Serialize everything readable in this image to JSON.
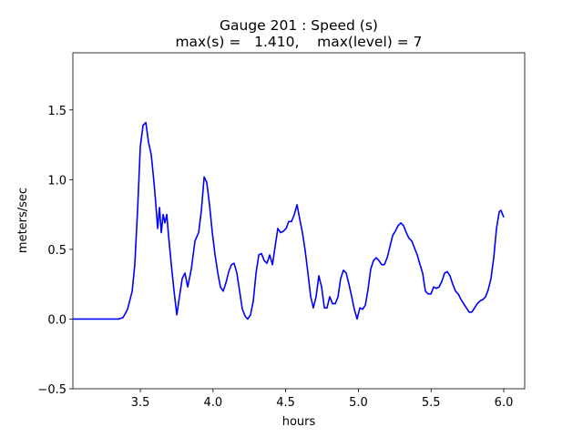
{
  "chart_data": {
    "type": "line",
    "title": "Gauge 201 : Speed (s)",
    "subtitle": "max(s) =   1.410,    max(level) = 7",
    "x_label": "hours",
    "y_label": "meters/sec",
    "xlim": [
      3.036,
      6.144
    ],
    "ylim": [
      -0.5,
      1.91
    ],
    "xticks": [
      3.5,
      {
        "value": 4,
        "label": "4.0"
      },
      4.5,
      {
        "value": 5,
        "label": "5.0"
      },
      5.5,
      {
        "value": 6,
        "label": "6.0"
      }
    ],
    "yticks": [
      {
        "value": -0.5,
        "label": "−0.5"
      },
      {
        "value": 0,
        "label": "0.0"
      },
      0.5,
      {
        "value": 1,
        "label": "1.0"
      },
      1.5
    ],
    "grid": false,
    "series": [
      {
        "color": "#0000ff",
        "x": [
          3.036,
          3.162,
          3.35,
          3.381,
          3.412,
          3.444,
          3.462,
          3.481,
          3.5,
          3.519,
          3.538,
          3.556,
          3.575,
          3.594,
          3.607,
          3.619,
          3.632,
          3.644,
          3.657,
          3.669,
          3.682,
          3.694,
          3.713,
          3.732,
          3.751,
          3.769,
          3.788,
          3.807,
          3.826,
          3.851,
          3.876,
          3.901,
          3.92,
          3.939,
          3.957,
          3.976,
          3.995,
          4.014,
          4.033,
          4.051,
          4.07,
          4.089,
          4.108,
          4.127,
          4.145,
          4.164,
          4.183,
          4.202,
          4.221,
          4.239,
          4.258,
          4.277,
          4.296,
          4.315,
          4.333,
          4.352,
          4.371,
          4.39,
          4.409,
          4.427,
          4.446,
          4.465,
          4.484,
          4.503,
          4.521,
          4.54,
          4.559,
          4.578,
          4.596,
          4.615,
          4.634,
          4.653,
          4.672,
          4.69,
          4.709,
          4.728,
          4.747,
          4.766,
          4.784,
          4.803,
          4.822,
          4.841,
          4.86,
          4.878,
          4.897,
          4.916,
          4.935,
          4.954,
          4.972,
          4.991,
          5.01,
          5.029,
          5.048,
          5.066,
          5.085,
          5.104,
          5.123,
          5.141,
          5.16,
          5.179,
          5.198,
          5.217,
          5.236,
          5.254,
          5.273,
          5.292,
          5.311,
          5.329,
          5.348,
          5.367,
          5.386,
          5.405,
          5.424,
          5.442,
          5.461,
          5.48,
          5.499,
          5.518,
          5.536,
          5.555,
          5.574,
          5.593,
          5.612,
          5.63,
          5.649,
          5.668,
          5.687,
          5.706,
          5.724,
          5.743,
          5.762,
          5.781,
          5.799,
          5.818,
          5.837,
          5.856,
          5.875,
          5.893,
          5.912,
          5.931,
          5.95,
          5.969,
          5.981,
          6.0
        ],
        "values": [
          0,
          0,
          0,
          0.01,
          0.07,
          0.2,
          0.39,
          0.78,
          1.24,
          1.39,
          1.41,
          1.27,
          1.18,
          0.98,
          0.82,
          0.65,
          0.8,
          0.62,
          0.75,
          0.69,
          0.75,
          0.6,
          0.39,
          0.2,
          0.03,
          0.16,
          0.29,
          0.33,
          0.23,
          0.36,
          0.56,
          0.62,
          0.78,
          1.02,
          0.98,
          0.82,
          0.62,
          0.46,
          0.33,
          0.23,
          0.2,
          0.26,
          0.34,
          0.39,
          0.4,
          0.33,
          0.2,
          0.07,
          0.02,
          0,
          0.03,
          0.13,
          0.33,
          0.46,
          0.47,
          0.42,
          0.4,
          0.46,
          0.39,
          0.52,
          0.65,
          0.62,
          0.63,
          0.65,
          0.7,
          0.7,
          0.75,
          0.82,
          0.72,
          0.62,
          0.49,
          0.33,
          0.16,
          0.08,
          0.16,
          0.31,
          0.23,
          0.08,
          0.08,
          0.16,
          0.11,
          0.11,
          0.16,
          0.29,
          0.35,
          0.33,
          0.25,
          0.16,
          0.07,
          0,
          0.08,
          0.07,
          0.1,
          0.21,
          0.36,
          0.42,
          0.44,
          0.42,
          0.39,
          0.39,
          0.44,
          0.52,
          0.6,
          0.63,
          0.67,
          0.69,
          0.67,
          0.62,
          0.58,
          0.56,
          0.51,
          0.46,
          0.39,
          0.33,
          0.2,
          0.18,
          0.18,
          0.23,
          0.22,
          0.23,
          0.27,
          0.33,
          0.34,
          0.31,
          0.25,
          0.2,
          0.18,
          0.14,
          0.11,
          0.08,
          0.05,
          0.05,
          0.08,
          0.11,
          0.13,
          0.14,
          0.16,
          0.21,
          0.29,
          0.44,
          0.65,
          0.77,
          0.78,
          0.73
        ]
      }
    ]
  }
}
